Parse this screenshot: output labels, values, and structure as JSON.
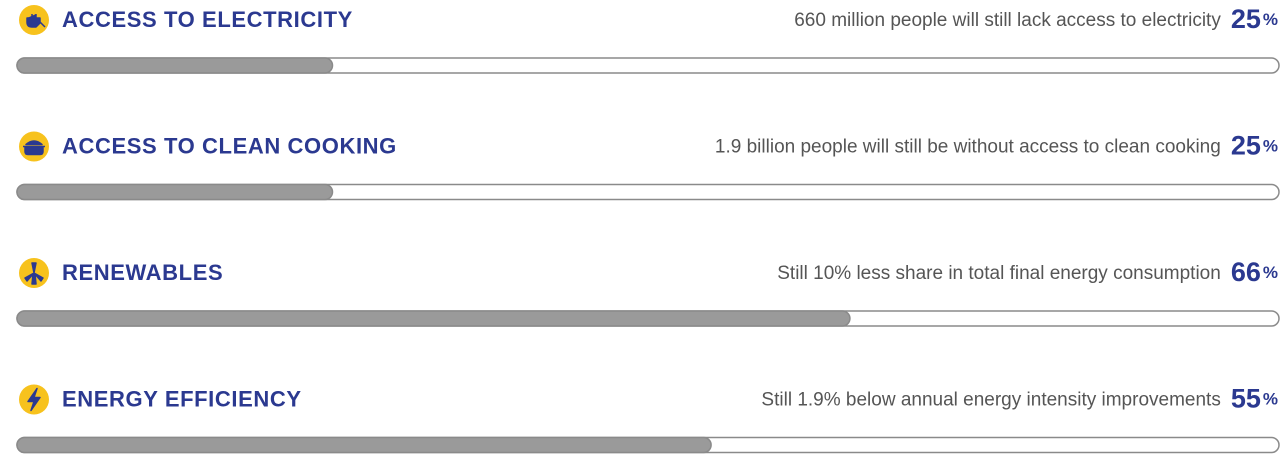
{
  "chart_data": {
    "type": "bar",
    "categories": [
      "ACCESS TO ELECTRICITY",
      "ACCESS TO CLEAN COOKING",
      "RENEWABLES",
      "ENERGY EFFICIENCY"
    ],
    "descriptions": [
      "660 million people will still lack access to electricity",
      "1.9 billion people will still be without access to clean cooking",
      "Still 10% less share in total final energy consumption",
      "Still 1.9% below annual energy intensity improvements"
    ],
    "values": [
      25,
      25,
      66,
      55
    ],
    "unit": "%",
    "xlim": [
      0,
      100
    ],
    "color": "#9a9a9a"
  }
}
